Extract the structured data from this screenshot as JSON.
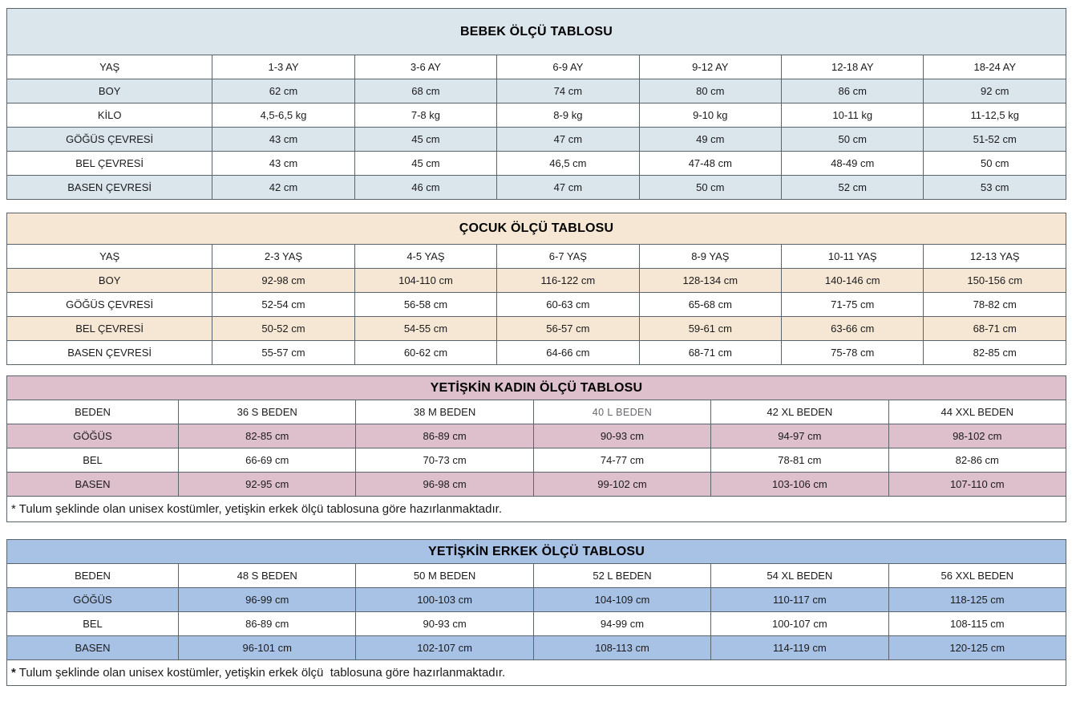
{
  "page": {
    "background": "#ffffff",
    "border_color": "#5a646d",
    "text_color": "#1b1b1d"
  },
  "tables": [
    {
      "id": "bebek",
      "title": "BEBEK ÖLÇÜ TABLOSU",
      "shade_color": "#dbe5ec",
      "rows": [
        [
          "YAŞ",
          "1-3 AY",
          "3-6 AY",
          "6-9 AY",
          "9-12 AY",
          "12-18 AY",
          "18-24 AY"
        ],
        [
          "BOY",
          "62 cm",
          "68 cm",
          "74 cm",
          "80 cm",
          "86 cm",
          "92 cm"
        ],
        [
          "KİLO",
          "4,5-6,5 kg",
          "7-8 kg",
          "8-9 kg",
          "9-10 kg",
          "10-11 kg",
          "11-12,5 kg"
        ],
        [
          "GÖĞÜS ÇEVRESİ",
          "43 cm",
          "45 cm",
          "47 cm",
          "49 cm",
          "50 cm",
          "51-52 cm"
        ],
        [
          "BEL ÇEVRESİ",
          "43 cm",
          "45 cm",
          "46,5 cm",
          "47-48 cm",
          "48-49 cm",
          "50 cm"
        ],
        [
          "BASEN ÇEVRESİ",
          "42 cm",
          "46 cm",
          "47 cm",
          "50 cm",
          "52 cm",
          "53 cm"
        ]
      ],
      "footnote": null
    },
    {
      "id": "cocuk",
      "title": "ÇOCUK ÖLÇÜ TABLOSU",
      "shade_color": "#f5e7d3",
      "rows": [
        [
          "YAŞ",
          "2-3 YAŞ",
          "4-5 YAŞ",
          "6-7 YAŞ",
          "8-9 YAŞ",
          "10-11 YAŞ",
          "12-13 YAŞ"
        ],
        [
          "BOY",
          "92-98 cm",
          "104-110 cm",
          "116-122 cm",
          "128-134 cm",
          "140-146 cm",
          "150-156 cm"
        ],
        [
          "GÖĞÜS ÇEVRESİ",
          "52-54 cm",
          "56-58 cm",
          "60-63 cm",
          "65-68 cm",
          "71-75 cm",
          "78-82 cm"
        ],
        [
          "BEL ÇEVRESİ",
          "50-52 cm",
          "54-55 cm",
          "56-57 cm",
          "59-61 cm",
          "63-66 cm",
          "68-71 cm"
        ],
        [
          "BASEN ÇEVRESİ",
          "55-57 cm",
          "60-62 cm",
          "64-66 cm",
          "68-71 cm",
          "75-78 cm",
          "82-85 cm"
        ]
      ],
      "footnote": null
    },
    {
      "id": "kadin",
      "title": "YETİŞKİN KADIN ÖLÇÜ TABLOSU",
      "shade_color": "#debfcc",
      "rows": [
        [
          "BEDEN",
          "36 S BEDEN",
          "38 M BEDEN",
          "40 L BEDEN",
          "42 XL BEDEN",
          "44 XXL BEDEN"
        ],
        [
          "GÖĞÜS",
          "82-85 cm",
          "86-89 cm",
          "90-93 cm",
          "94-97 cm",
          "98-102 cm"
        ],
        [
          "BEL",
          "66-69 cm",
          "70-73 cm",
          "74-77 cm",
          "78-81 cm",
          "82-86 cm"
        ],
        [
          "BASEN",
          "92-95 cm",
          "96-98 cm",
          "99-102 cm",
          "103-106 cm",
          "107-110 cm"
        ]
      ],
      "muted_cells": [
        [
          0,
          3
        ]
      ],
      "footnote": {
        "marker": "*",
        "marker_bold": false,
        "text": "Tulum şeklinde olan unisex kostümler, yetişkin erkek ölçü tablosuna göre hazırlanmaktadır."
      }
    },
    {
      "id": "erkek",
      "title": "YETİŞKİN ERKEK ÖLÇÜ TABLOSU",
      "shade_color": "#a8c2e5",
      "rows": [
        [
          "BEDEN",
          "48 S BEDEN",
          "50 M BEDEN",
          "52 L BEDEN",
          "54 XL BEDEN",
          "56 XXL BEDEN"
        ],
        [
          "GÖĞÜS",
          "96-99 cm",
          "100-103 cm",
          "104-109 cm",
          "110-117 cm",
          "118-125 cm"
        ],
        [
          "BEL",
          "86-89 cm",
          "90-93 cm",
          "94-99 cm",
          "100-107 cm",
          "108-115 cm"
        ],
        [
          "BASEN",
          "96-101 cm",
          "102-107 cm",
          "108-113 cm",
          "114-119 cm",
          "120-125 cm"
        ]
      ],
      "footnote": {
        "marker": "*",
        "marker_bold": true,
        "text": "Tulum şeklinde olan unisex kostümler, yetişkin erkek ölçü  tablosuna göre hazırlanmaktadır."
      }
    }
  ]
}
